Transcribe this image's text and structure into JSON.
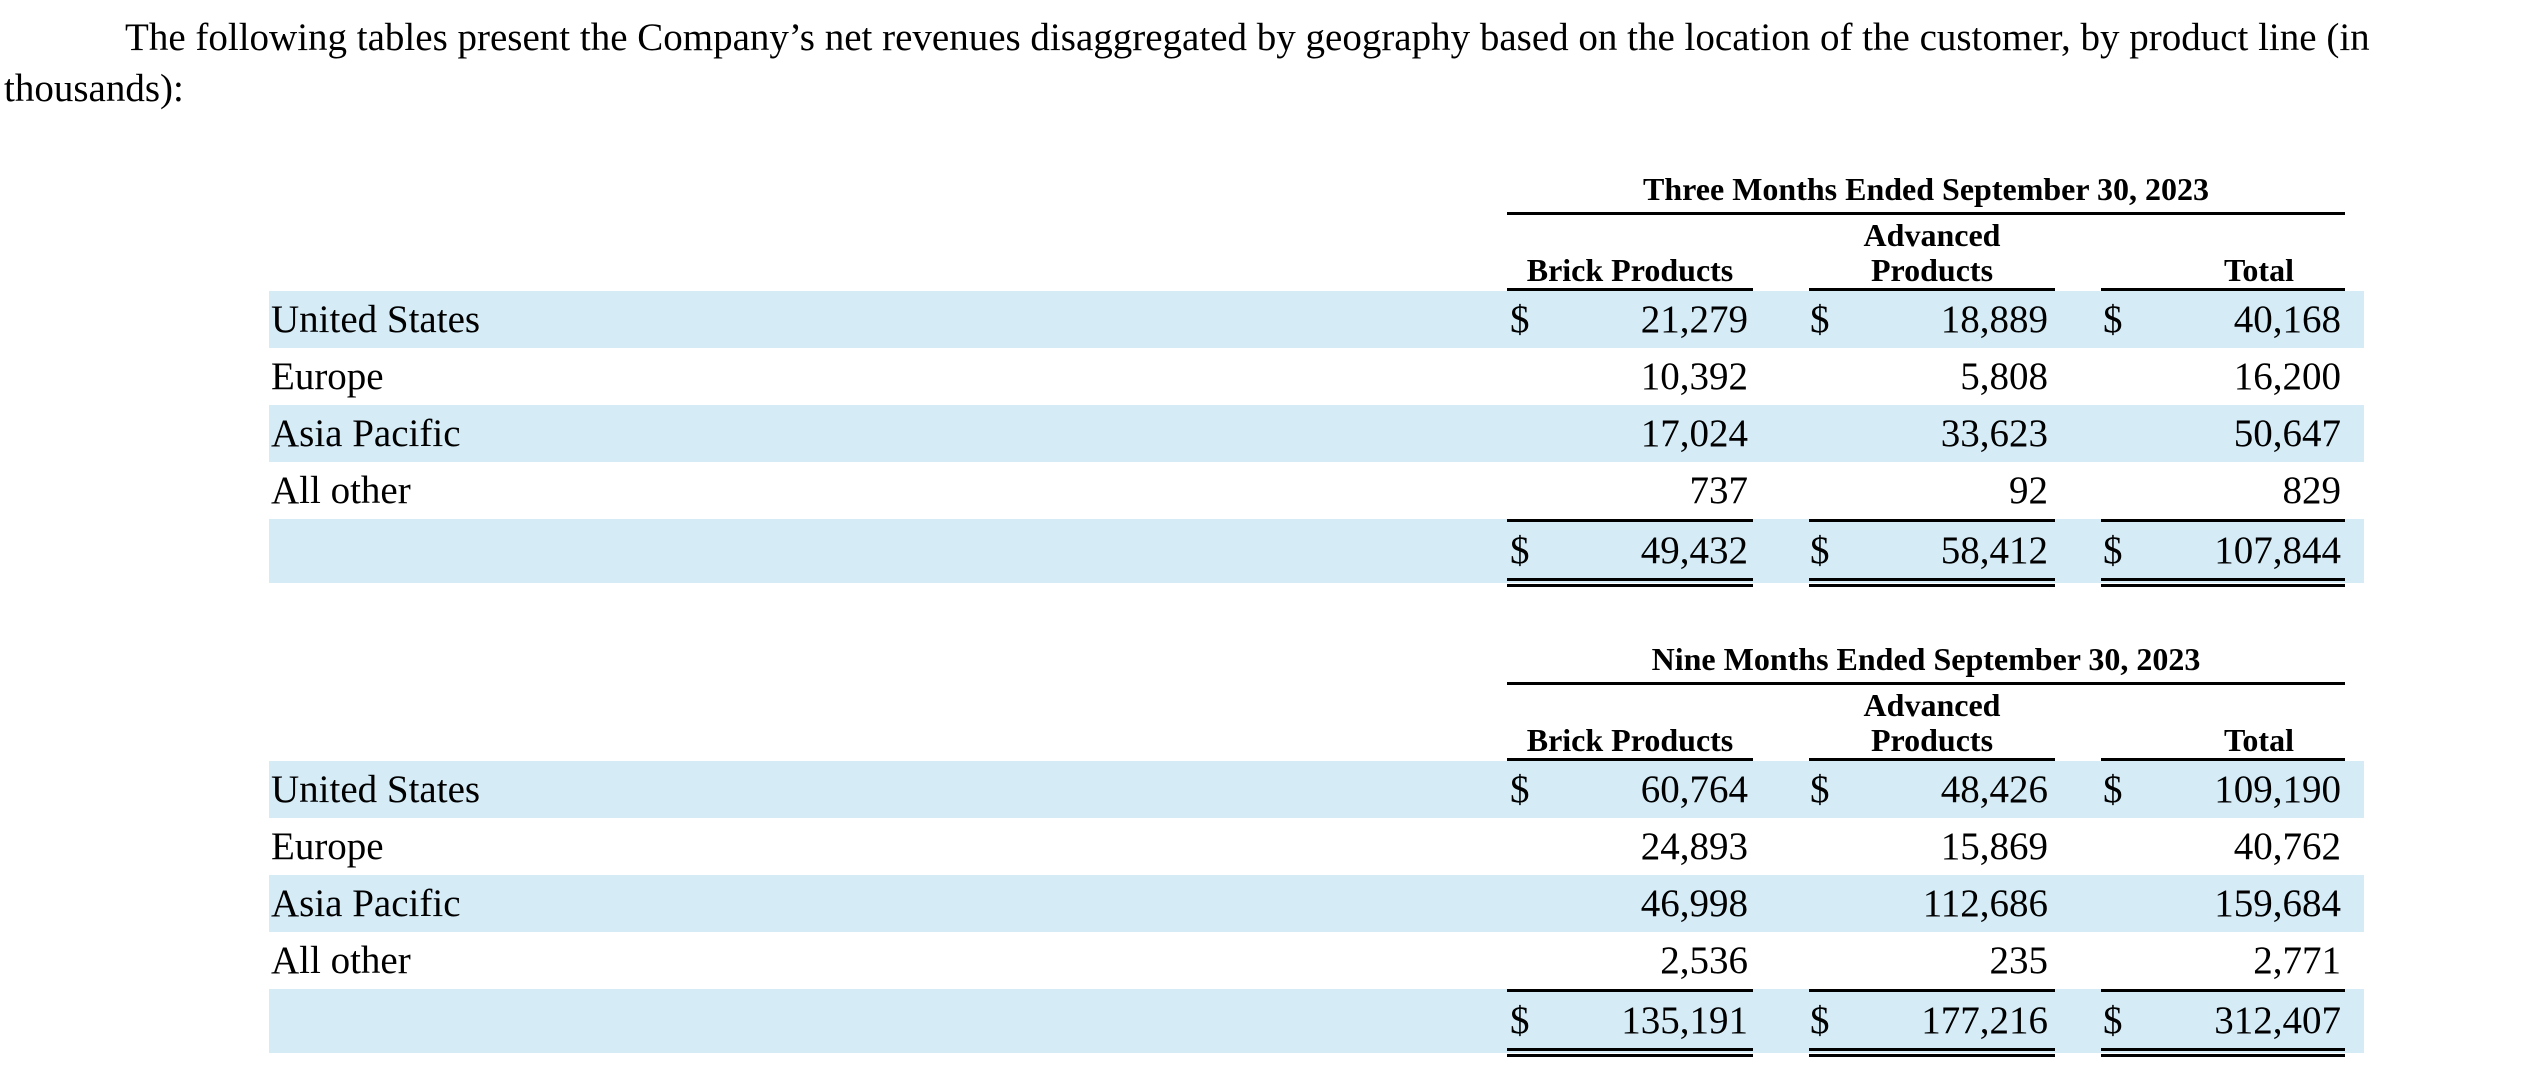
{
  "intro": "The following tables present the Company’s net revenues disaggregated by geography based on the location of the customer, by product line (in thousands):",
  "columns": [
    {
      "line1": "",
      "line2": "Brick Products"
    },
    {
      "line1": "Advanced",
      "line2": "Products"
    },
    {
      "line1": "",
      "line2": "Total"
    }
  ],
  "currency_symbol": "$",
  "sections": [
    {
      "period": "Three Months Ended September 30, 2023",
      "rows": [
        {
          "label": "United States",
          "values": [
            "21,279",
            "18,889",
            "40,168"
          ]
        },
        {
          "label": "Europe",
          "values": [
            "10,392",
            "5,808",
            "16,200"
          ]
        },
        {
          "label": "Asia Pacific",
          "values": [
            "17,024",
            "33,623",
            "50,647"
          ]
        },
        {
          "label": "All other",
          "values": [
            "737",
            "92",
            "829"
          ]
        }
      ],
      "total": {
        "label": "",
        "values": [
          "49,432",
          "58,412",
          "107,844"
        ]
      }
    },
    {
      "period": "Nine Months Ended September 30, 2023",
      "rows": [
        {
          "label": "United States",
          "values": [
            "60,764",
            "48,426",
            "109,190"
          ]
        },
        {
          "label": "Europe",
          "values": [
            "24,893",
            "15,869",
            "40,762"
          ]
        },
        {
          "label": "Asia Pacific",
          "values": [
            "46,998",
            "112,686",
            "159,684"
          ]
        },
        {
          "label": "All other",
          "values": [
            "2,536",
            "235",
            "2,771"
          ]
        }
      ],
      "total": {
        "label": "",
        "values": [
          "135,191",
          "177,216",
          "312,407"
        ]
      }
    }
  ]
}
